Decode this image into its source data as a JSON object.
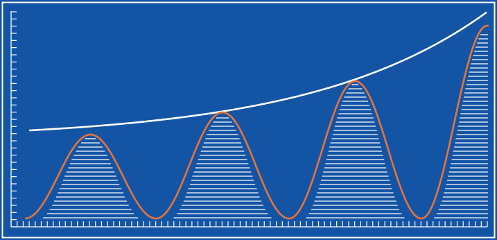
{
  "colors": {
    "background": "#1454a4",
    "frame": "#ffffff",
    "ticks": "#ffffff",
    "hatching": "#ffffff",
    "envelope_curve": "#ffffff",
    "oscillation_curve": "#e8743b"
  },
  "chart_data": {
    "type": "line",
    "title": "",
    "xlabel": "",
    "ylabel": "",
    "tick_labels_shown": false,
    "grid": false,
    "peak_count": 4,
    "x_ticks": 79,
    "y_ticks": 30,
    "series": [
      {
        "role": "envelope",
        "color": "#ffffff",
        "shape": "exponential growth"
      },
      {
        "role": "oscillation",
        "color": "#e8743b",
        "shape": "growing peaks",
        "hatched_under": true
      }
    ]
  }
}
